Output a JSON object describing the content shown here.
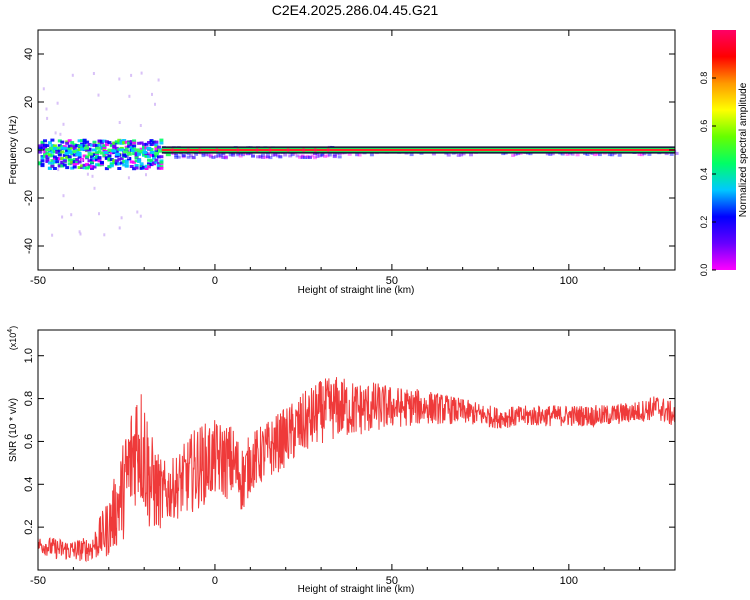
{
  "page_title": "C2E4.2025.286.04.45.G21",
  "colors": {
    "frame": "#000000",
    "snr_line": "#ef3a3a",
    "background": "#ffffff"
  },
  "chart_data": [
    {
      "id": "spectrogram",
      "type": "heatmap",
      "title": "C2E4.2025.286.04.45.G21",
      "xlabel": "Height of straight line (km)",
      "ylabel": "Frequency (Hz)",
      "xlim": [
        -50,
        130
      ],
      "ylim": [
        -50,
        50
      ],
      "xticks": [
        -50,
        0,
        50,
        100
      ],
      "yticks": [
        -40,
        -20,
        0,
        20,
        40
      ],
      "description_of_content": "Signal energy concentrated near 0 Hz; wide scatter (about -10 to +5 Hz) below ~-15 km, narrow carrier line above",
      "colorbar": {
        "label": "Normalized spectral amplitude",
        "range": [
          0.0,
          1.0
        ],
        "ticks": [
          0.0,
          0.2,
          0.4,
          0.6,
          0.8
        ],
        "colormap": [
          "#ff00ff",
          "#6600ff",
          "#0000ff",
          "#00c8ff",
          "#00ff66",
          "#66ff00",
          "#ffff00",
          "#ff9900",
          "#ff0000",
          "#ff0066"
        ]
      },
      "carrier_band": {
        "x_start": -15,
        "x_end": 130,
        "f_low": -1.5,
        "f_high": 1.5
      }
    },
    {
      "id": "snr",
      "type": "line",
      "xlabel": "Height of straight line (km)",
      "ylabel": "SNR (10 * v/v)",
      "y_scale_label": "(x10",
      "y_scale_exponent": "4",
      "xlim": [
        -50,
        130
      ],
      "ylim": [
        0,
        1.12
      ],
      "xticks": [
        -50,
        0,
        50,
        100
      ],
      "yticks": [
        0.2,
        0.4,
        0.6,
        0.8,
        1.0
      ],
      "series": [
        {
          "color": "#ef3a3a",
          "x": [
            -50,
            -45,
            -40,
            -35,
            -30,
            -27,
            -25,
            -22,
            -20,
            -18,
            -15,
            -12,
            -10,
            -5,
            0,
            5,
            8,
            10,
            15,
            20,
            25,
            30,
            35,
            40,
            45,
            50,
            60,
            70,
            80,
            90,
            100,
            110,
            120,
            125,
            130
          ],
          "y": [
            0.12,
            0.1,
            0.09,
            0.1,
            0.2,
            0.32,
            0.42,
            0.62,
            0.55,
            0.4,
            0.35,
            0.38,
            0.4,
            0.48,
            0.52,
            0.5,
            0.42,
            0.5,
            0.56,
            0.62,
            0.68,
            0.74,
            0.76,
            0.75,
            0.76,
            0.76,
            0.76,
            0.74,
            0.71,
            0.72,
            0.72,
            0.72,
            0.74,
            0.76,
            0.72
          ],
          "noise_amplitude": [
            0.04,
            0.05,
            0.05,
            0.06,
            0.14,
            0.2,
            0.26,
            0.3,
            0.3,
            0.24,
            0.16,
            0.14,
            0.16,
            0.2,
            0.18,
            0.18,
            0.16,
            0.14,
            0.14,
            0.14,
            0.15,
            0.15,
            0.15,
            0.13,
            0.12,
            0.1,
            0.08,
            0.06,
            0.05,
            0.05,
            0.05,
            0.05,
            0.05,
            0.06,
            0.06
          ]
        }
      ]
    }
  ]
}
